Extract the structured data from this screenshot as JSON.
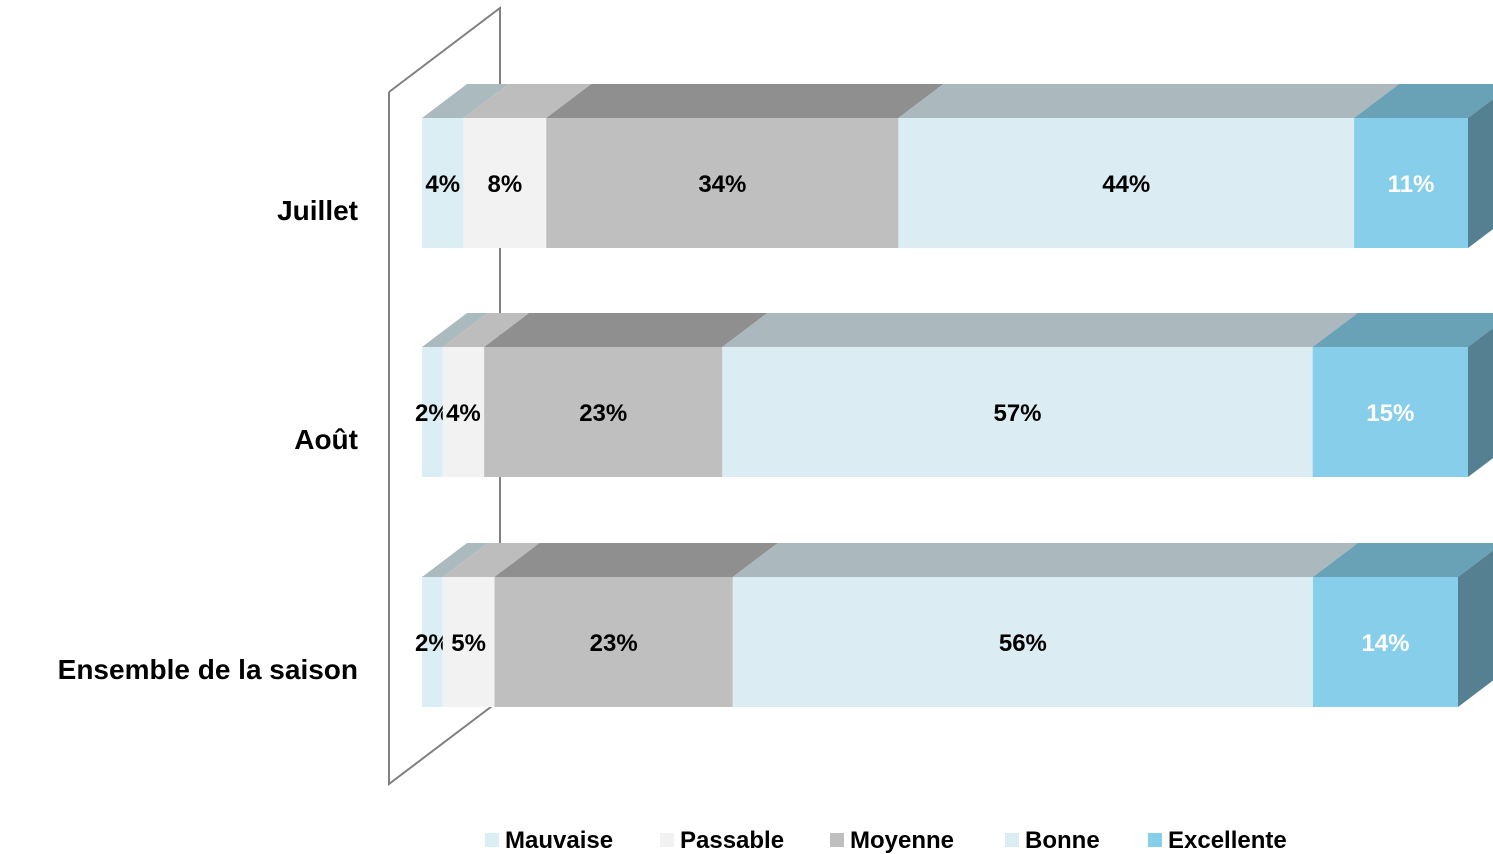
{
  "chart_data": {
    "type": "bar",
    "orientation": "horizontal",
    "stacked": true,
    "percent_stacked": true,
    "style": "3d",
    "title": "",
    "xlabel": "",
    "ylabel": "",
    "categories": [
      "Juillet",
      "Août",
      "Ensemble de la saison"
    ],
    "series": [
      {
        "name": "Mauvaise",
        "values": [
          4,
          2,
          2
        ],
        "labels": [
          "4%",
          "2%",
          "2%"
        ],
        "color": "#daeef3",
        "label_color": "#000000"
      },
      {
        "name": "Passable",
        "values": [
          8,
          4,
          5
        ],
        "labels": [
          "8%",
          "4%",
          "5%"
        ],
        "color": "#f2f2f2",
        "label_color": "#000000"
      },
      {
        "name": "Moyenne",
        "values": [
          34,
          23,
          23
        ],
        "labels": [
          "34%",
          "23%",
          "23%"
        ],
        "color": "#bfbfbf",
        "label_color": "#000000"
      },
      {
        "name": "Bonne",
        "values": [
          44,
          57,
          56
        ],
        "labels": [
          "44%",
          "57%",
          "56%"
        ],
        "color": "#dbedf3",
        "label_color": "#000000"
      },
      {
        "name": "Excellente",
        "values": [
          11,
          15,
          14
        ],
        "labels": [
          "11%",
          "15%",
          "14%"
        ],
        "color": "#87ceeb",
        "label_color": "#ffffff"
      }
    ],
    "grid": false,
    "legend_position": "bottom",
    "axis_color": "#808080"
  }
}
